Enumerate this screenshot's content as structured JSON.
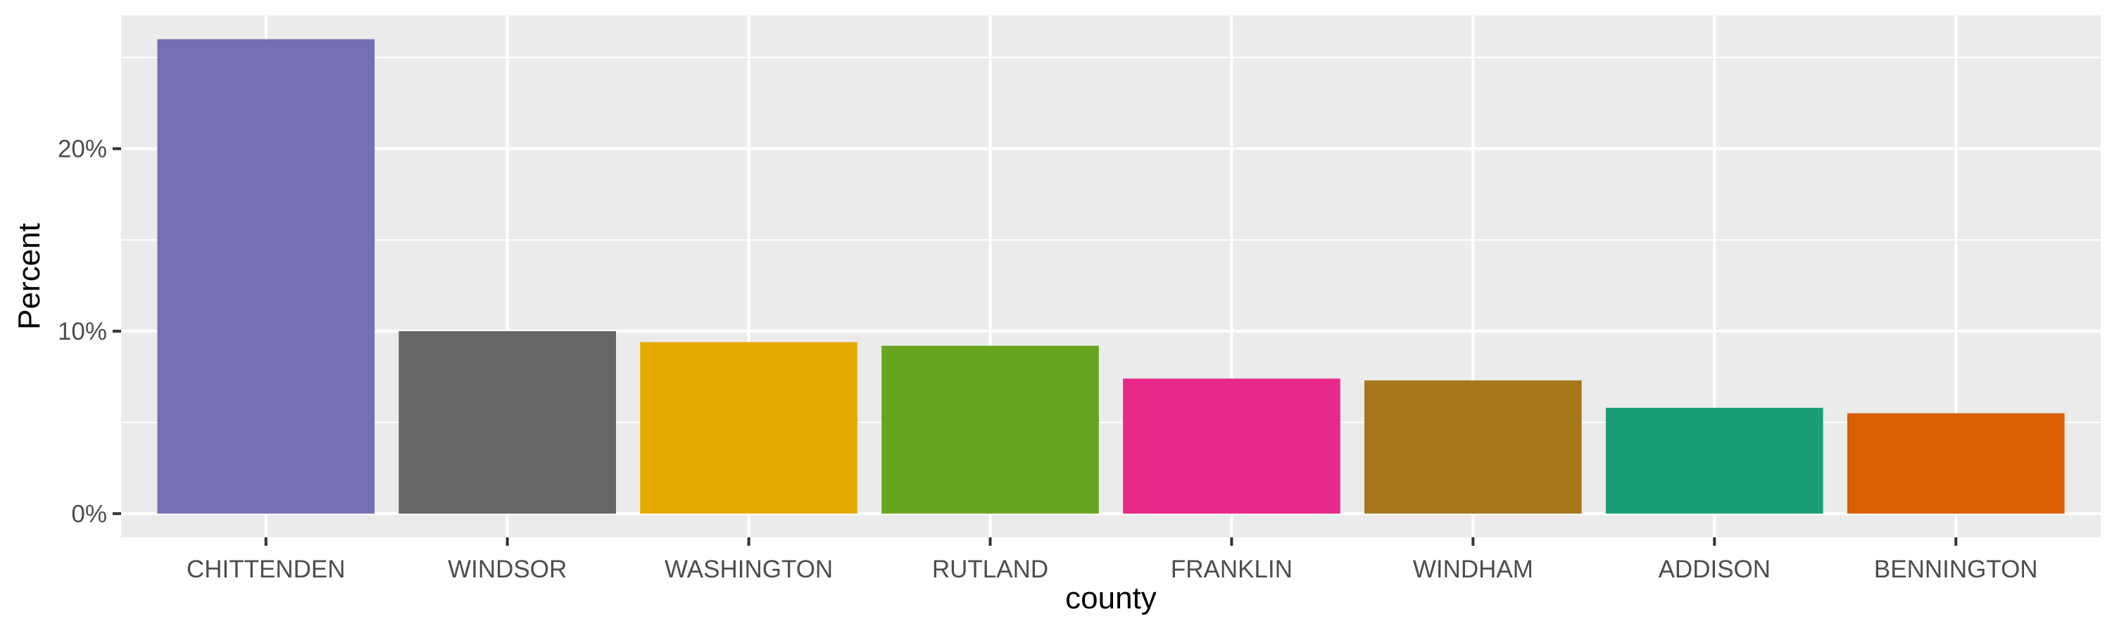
{
  "chart_data": {
    "type": "bar",
    "xlabel": "county",
    "ylabel": "Percent",
    "categories": [
      "CHITTENDEN",
      "WINDSOR",
      "WASHINGTON",
      "RUTLAND",
      "FRANKLIN",
      "WINDHAM",
      "ADDISON",
      "BENNINGTON"
    ],
    "values": [
      26.0,
      10.0,
      9.4,
      9.2,
      7.4,
      7.3,
      5.8,
      5.5
    ],
    "colors": [
      "#7570B3",
      "#666666",
      "#E6AB02",
      "#66A61E",
      "#E7298A",
      "#A6761D",
      "#1B9E77",
      "#D95F02"
    ],
    "ylim": [
      -1.3,
      27.3
    ],
    "yticks": [
      0,
      10,
      20
    ],
    "ytick_labels": [
      "0%",
      "10%",
      "20%"
    ],
    "grid": true,
    "legend": "none"
  }
}
